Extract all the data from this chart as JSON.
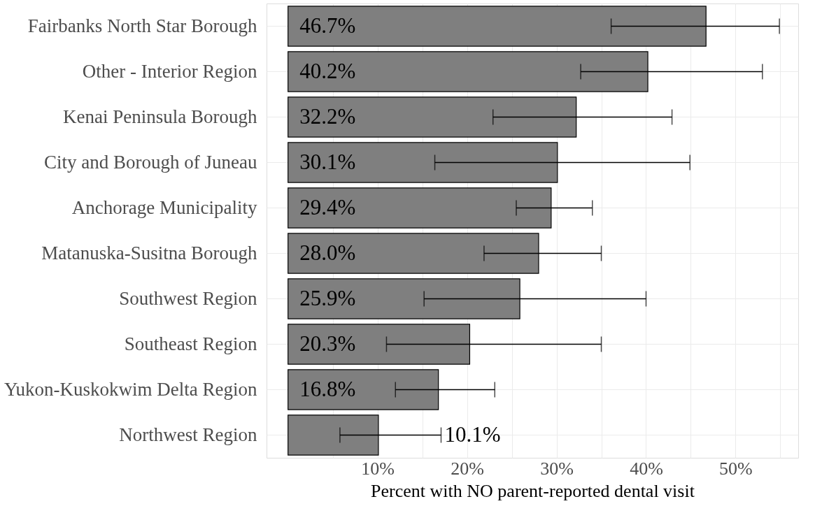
{
  "chart_data": {
    "type": "bar",
    "orientation": "horizontal",
    "xlabel": "Percent with NO parent-reported dental visit",
    "categories": [
      "Fairbanks North Star Borough",
      "Other - Interior Region",
      "Kenai Peninsula Borough",
      "City and Borough of Juneau",
      "Anchorage Municipality",
      "Matanuska-Susitna Borough",
      "Southwest Region",
      "Southeast Region",
      "Yukon-Kuskokwim Delta Region",
      "Northwest Region"
    ],
    "values": [
      46.7,
      40.2,
      32.2,
      30.1,
      29.4,
      28.0,
      25.9,
      20.3,
      16.8,
      10.1
    ],
    "value_labels": [
      "46.7%",
      "40.2%",
      "32.2%",
      "30.1%",
      "29.4%",
      "28.0%",
      "25.9%",
      "20.3%",
      "16.8%",
      "10.1%"
    ],
    "errors": [
      [
        36.1,
        54.9
      ],
      [
        32.7,
        53.0
      ],
      [
        22.9,
        42.9
      ],
      [
        16.4,
        44.9
      ],
      [
        25.5,
        34.0
      ],
      [
        21.9,
        35.0
      ],
      [
        15.2,
        40.0
      ],
      [
        11.0,
        35.0
      ],
      [
        12.0,
        23.1
      ],
      [
        5.8,
        17.1
      ]
    ],
    "color": "#7f7f7f",
    "xlim": [
      -2.4,
      57
    ],
    "xticks": [
      {
        "value": 5,
        "label": null
      },
      {
        "value": 10,
        "label": "10%"
      },
      {
        "value": 15,
        "label": null
      },
      {
        "value": 20,
        "label": "20%"
      },
      {
        "value": 25,
        "label": null
      },
      {
        "value": 30,
        "label": "30%"
      },
      {
        "value": 35,
        "label": null
      },
      {
        "value": 40,
        "label": "40%"
      },
      {
        "value": 45,
        "label": null
      },
      {
        "value": 50,
        "label": "50%"
      },
      {
        "value": 55,
        "label": null
      }
    ],
    "grid": true
  }
}
